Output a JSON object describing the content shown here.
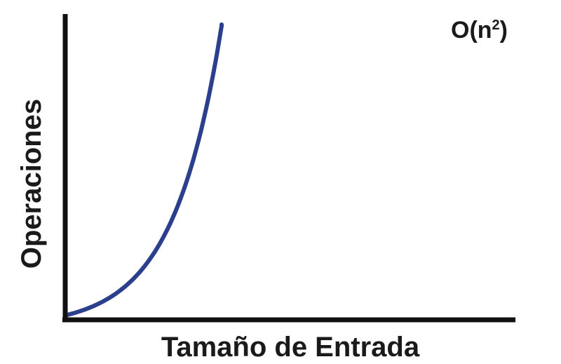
{
  "chart_data": {
    "type": "line",
    "title": "",
    "xlabel": "Tamaño de Entrada",
    "ylabel": "Operaciones",
    "annotation": {
      "base": "O(n",
      "superscript": "2",
      "close": ")"
    },
    "grid": false,
    "legend": "none",
    "series": [
      {
        "function": "n^2",
        "color": "#2b3f8c"
      }
    ],
    "axis_color": "#111111"
  }
}
